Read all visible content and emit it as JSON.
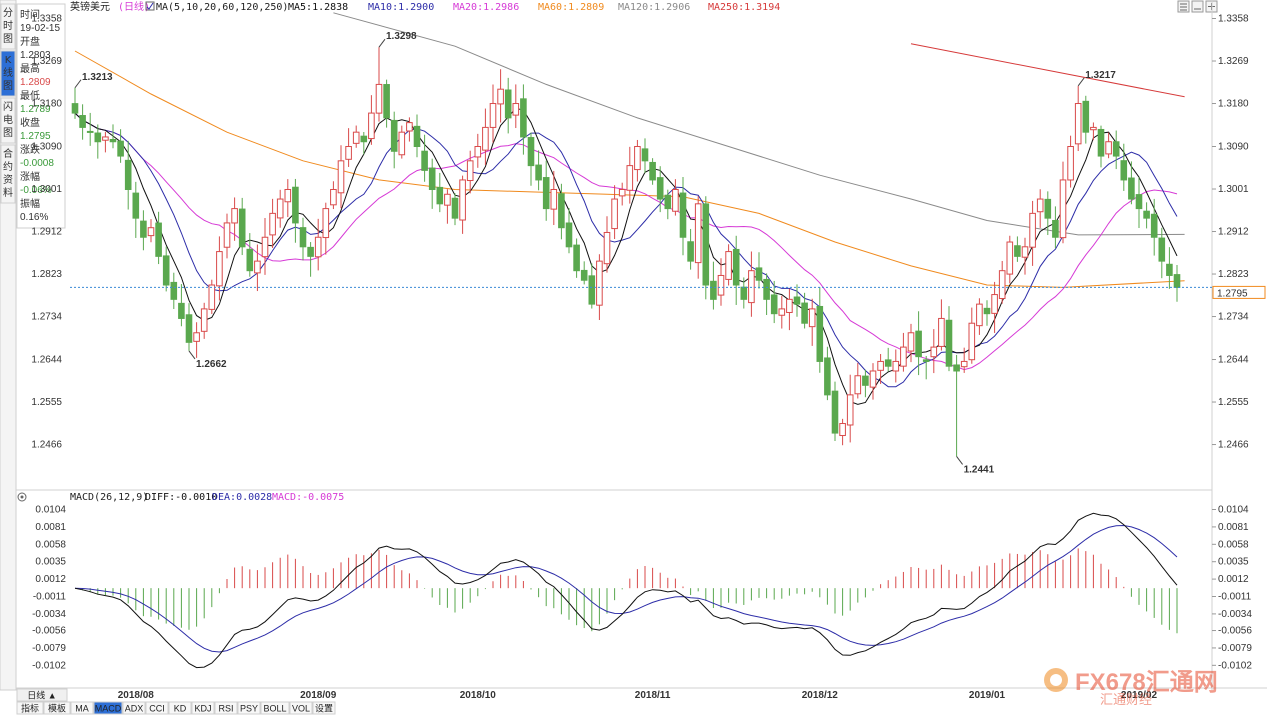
{
  "side_tabs": [
    {
      "label": "分时图",
      "active": false
    },
    {
      "label": "K线图",
      "active": true
    },
    {
      "label": "闪电图",
      "active": false
    },
    {
      "label": "合约资料",
      "active": false
    }
  ],
  "info_panel": {
    "time_label": "时间",
    "time_value": "19-02-15",
    "open_label": "开盘",
    "open_value": "1.2803",
    "high_label": "最高",
    "high_value": "1.2809",
    "low_label": "最低",
    "low_value": "1.2789",
    "close_label": "收盘",
    "close_value": "1.2795",
    "change_label": "涨跌",
    "change_value": "-0.0008",
    "pct_label": "涨幅",
    "pct_value": "-0.06%",
    "amp_label": "振幅",
    "amp_value": "0.16%"
  },
  "header": {
    "symbol": "英镑美元",
    "period": "(日线)",
    "ma_params": "MA(5,10,20,60,120,250)",
    "ma5": "MA5:1.2838",
    "ma10": "MA10:1.2900",
    "ma20": "MA20:1.2986",
    "ma60": "MA60:1.2809",
    "ma120": "MA120:1.2906",
    "ma250": "MA250:1.3194"
  },
  "macd_header": {
    "params": "MACD(26,12,9)",
    "diff": "DIFF:-0.0010",
    "dea": "DEA:0.0028",
    "macd": "MACD:-0.0075"
  },
  "colors": {
    "up": "#d94a4a",
    "down": "#5aa84e",
    "ma5": "#111111",
    "ma10": "#2d2da8",
    "ma20": "#d63ad6",
    "ma60": "#f08a1e",
    "ma120": "#8a8a8a",
    "ma250": "#d63a3a"
  },
  "current_price": "1.2795",
  "bottom_tabs": [
    "日线 ▲",
    "指标",
    "模板",
    "MA",
    "MACD",
    "ADX",
    "CCI",
    "KD",
    "KDJ",
    "RSI",
    "PSY",
    "BOLL",
    "VOL",
    "设置"
  ],
  "watermark": "FX678汇通网",
  "watermark_sub": "汇通财经",
  "chart_data": {
    "type": "candlestick",
    "price_axis": {
      "ticks": [
        "1.3358",
        "1.3269",
        "1.3180",
        "1.3090",
        "1.3001",
        "1.2912",
        "1.2823",
        "1.2734",
        "1.2644",
        "1.2555",
        "1.2466"
      ],
      "ylim": [
        1.2375,
        1.338
      ]
    },
    "macd_axis": {
      "ticks": [
        "0.0104",
        "0.0081",
        "0.0058",
        "0.0035",
        "0.0012",
        "-0.0011",
        "-0.0034",
        "-0.0056",
        "-0.0079",
        "-0.0102"
      ],
      "ylim": [
        -0.0128,
        0.0106
      ]
    },
    "x_ticks": [
      "2018/08",
      "2018/09",
      "2018/10",
      "2018/11",
      "2018/12",
      "2019/01",
      "2019/02"
    ],
    "x_tick_index": [
      8,
      32,
      53,
      76,
      98,
      120,
      140
    ],
    "annotations": [
      {
        "index": 0,
        "value": 1.3213,
        "label": "1.3213",
        "color": "#d94a4a",
        "type": "high"
      },
      {
        "index": 15,
        "value": 1.2662,
        "label": "1.2662",
        "color": "#5aa84e",
        "type": "low"
      },
      {
        "index": 40,
        "value": 1.3298,
        "label": "1.3298",
        "color": "#d94a4a",
        "type": "high"
      },
      {
        "index": 116,
        "value": 1.2441,
        "label": "1.2441",
        "color": "#5aa84e",
        "type": "low"
      },
      {
        "index": 132,
        "value": 1.3217,
        "label": "1.3217",
        "color": "#d94a4a",
        "type": "high"
      }
    ],
    "close_anchors": [
      [
        0,
        1.316
      ],
      [
        1,
        1.313
      ],
      [
        2,
        1.312
      ],
      [
        3,
        1.31
      ],
      [
        4,
        1.311
      ],
      [
        5,
        1.31
      ],
      [
        6,
        1.307
      ],
      [
        7,
        1.3
      ],
      [
        8,
        1.294
      ],
      [
        9,
        1.29
      ],
      [
        10,
        1.292
      ],
      [
        11,
        1.286
      ],
      [
        12,
        1.28
      ],
      [
        13,
        1.277
      ],
      [
        14,
        1.273
      ],
      [
        15,
        1.268
      ],
      [
        16,
        1.27
      ],
      [
        17,
        1.275
      ],
      [
        18,
        1.28
      ],
      [
        19,
        1.287
      ],
      [
        20,
        1.293
      ],
      [
        21,
        1.296
      ],
      [
        22,
        1.288
      ],
      [
        23,
        1.283
      ],
      [
        24,
        1.285
      ],
      [
        25,
        1.29
      ],
      [
        26,
        1.295
      ],
      [
        27,
        1.298
      ],
      [
        28,
        1.3
      ],
      [
        29,
        1.293
      ],
      [
        30,
        1.288
      ],
      [
        31,
        1.286
      ],
      [
        32,
        1.29
      ],
      [
        33,
        1.296
      ],
      [
        34,
        1.3
      ],
      [
        35,
        1.306
      ],
      [
        36,
        1.309
      ],
      [
        37,
        1.312
      ],
      [
        38,
        1.31
      ],
      [
        39,
        1.316
      ],
      [
        40,
        1.322
      ],
      [
        41,
        1.315
      ],
      [
        42,
        1.308
      ],
      [
        43,
        1.312
      ],
      [
        44,
        1.314
      ],
      [
        45,
        1.309
      ],
      [
        46,
        1.304
      ],
      [
        47,
        1.3
      ],
      [
        48,
        1.297
      ],
      [
        49,
        1.299
      ],
      [
        50,
        1.294
      ],
      [
        51,
        1.302
      ],
      [
        52,
        1.306
      ],
      [
        53,
        1.309
      ],
      [
        54,
        1.313
      ],
      [
        55,
        1.318
      ],
      [
        56,
        1.321
      ],
      [
        57,
        1.315
      ],
      [
        58,
        1.318
      ],
      [
        59,
        1.311
      ],
      [
        60,
        1.305
      ],
      [
        61,
        1.302
      ],
      [
        62,
        1.296
      ],
      [
        63,
        1.3
      ],
      [
        64,
        1.292
      ],
      [
        65,
        1.288
      ],
      [
        66,
        1.283
      ],
      [
        67,
        1.281
      ],
      [
        68,
        1.276
      ],
      [
        69,
        1.285
      ],
      [
        70,
        1.291
      ],
      [
        71,
        1.298
      ],
      [
        72,
        1.3
      ],
      [
        73,
        1.305
      ],
      [
        74,
        1.309
      ],
      [
        75,
        1.306
      ],
      [
        76,
        1.302
      ],
      [
        77,
        1.298
      ],
      [
        78,
        1.296
      ],
      [
        79,
        1.3
      ],
      [
        80,
        1.29
      ],
      [
        81,
        1.285
      ],
      [
        82,
        1.297
      ],
      [
        83,
        1.28
      ],
      [
        84,
        1.277
      ],
      [
        85,
        1.282
      ],
      [
        86,
        1.287
      ],
      [
        87,
        1.28
      ],
      [
        88,
        1.277
      ],
      [
        89,
        1.283
      ],
      [
        90,
        1.281
      ],
      [
        91,
        1.277
      ],
      [
        92,
        1.274
      ],
      [
        93,
        1.275
      ],
      [
        94,
        1.277
      ],
      [
        95,
        1.276
      ],
      [
        96,
        1.272
      ],
      [
        97,
        1.275
      ],
      [
        98,
        1.264
      ],
      [
        99,
        1.257
      ],
      [
        100,
        1.249
      ],
      [
        101,
        1.251
      ],
      [
        102,
        1.257
      ],
      [
        103,
        1.261
      ],
      [
        104,
        1.259
      ],
      [
        105,
        1.262
      ],
      [
        106,
        1.264
      ],
      [
        107,
        1.263
      ],
      [
        108,
        1.264
      ],
      [
        109,
        1.267
      ],
      [
        110,
        1.27
      ],
      [
        111,
        1.265
      ],
      [
        112,
        1.264
      ],
      [
        113,
        1.267
      ],
      [
        114,
        1.273
      ],
      [
        115,
        1.263
      ],
      [
        116,
        1.262
      ],
      [
        117,
        1.264
      ],
      [
        118,
        1.272
      ],
      [
        119,
        1.276
      ],
      [
        120,
        1.274
      ],
      [
        121,
        1.278
      ],
      [
        122,
        1.283
      ],
      [
        123,
        1.289
      ],
      [
        124,
        1.286
      ],
      [
        125,
        1.288
      ],
      [
        126,
        1.295
      ],
      [
        127,
        1.298
      ],
      [
        128,
        1.294
      ],
      [
        129,
        1.29
      ],
      [
        130,
        1.302
      ],
      [
        131,
        1.309
      ],
      [
        132,
        1.318
      ],
      [
        133,
        1.312
      ],
      [
        134,
        1.313
      ],
      [
        135,
        1.307
      ],
      [
        136,
        1.31
      ],
      [
        137,
        1.307
      ],
      [
        138,
        1.302
      ],
      [
        139,
        1.298
      ],
      [
        140,
        1.296
      ],
      [
        141,
        1.294
      ],
      [
        142,
        1.29
      ],
      [
        143,
        1.285
      ],
      [
        144,
        1.282
      ],
      [
        145,
        1.2795
      ]
    ],
    "series": [
      {
        "name": "MA5",
        "color": "#111111"
      },
      {
        "name": "MA10",
        "color": "#2d2da8"
      },
      {
        "name": "MA20",
        "color": "#d63ad6"
      },
      {
        "name": "MA60",
        "color": "#f08a1e"
      },
      {
        "name": "MA120",
        "color": "#8a8a8a"
      },
      {
        "name": "MA250",
        "color": "#d63a3a"
      }
    ],
    "grid": false
  }
}
